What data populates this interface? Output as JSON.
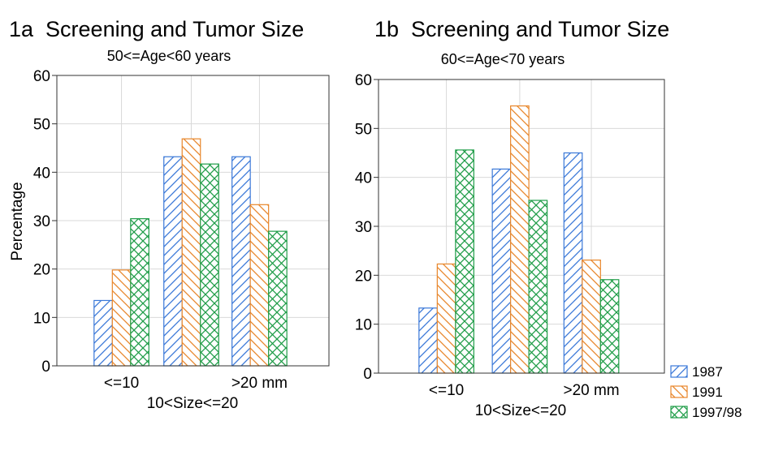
{
  "chart_data": [
    {
      "type": "bar",
      "title": "1a  Screening and Tumor Size",
      "subtitle": "50<=Age<60 years",
      "ylabel": "Percentage",
      "xlabel": "10<Size<=20",
      "categories": [
        "<=10",
        "",
        ">20 mm"
      ],
      "ylim": [
        0,
        60
      ],
      "yticks": [
        0,
        10,
        20,
        30,
        40,
        50,
        60
      ],
      "grid": true,
      "series": [
        {
          "name": "1987",
          "values": [
            13.5,
            43.2,
            43.2
          ]
        },
        {
          "name": "1991",
          "values": [
            19.8,
            46.9,
            33.3
          ]
        },
        {
          "name": "1997/98",
          "values": [
            30.4,
            41.7,
            27.8
          ]
        }
      ]
    },
    {
      "type": "bar",
      "title": "1b  Screening and Tumor Size",
      "subtitle": "60<=Age<70 years",
      "ylabel": "",
      "xlabel": "10<Size<=20",
      "categories": [
        "<=10",
        "",
        ">20 mm"
      ],
      "ylim": [
        0,
        60
      ],
      "yticks": [
        0,
        10,
        20,
        30,
        40,
        50,
        60
      ],
      "grid": true,
      "series": [
        {
          "name": "1987",
          "values": [
            13.3,
            41.7,
            45.0
          ]
        },
        {
          "name": "1991",
          "values": [
            22.3,
            54.6,
            23.1
          ]
        },
        {
          "name": "1997/98",
          "values": [
            45.6,
            35.3,
            19.1
          ]
        }
      ]
    }
  ],
  "legend": {
    "placement": "bottom-right",
    "items": [
      {
        "label": "1987",
        "color": "#3a78d8",
        "pattern": "hatch-forward"
      },
      {
        "label": "1991",
        "color": "#e8862a",
        "pattern": "hatch-back"
      },
      {
        "label": "1997/98",
        "color": "#1f9d48",
        "pattern": "crosshatch"
      }
    ]
  },
  "colors": {
    "series_1987": "#3a78d8",
    "series_1991": "#e8862a",
    "series_1997_98": "#1f9d48",
    "gridline": "#d9d9d9",
    "axis": "#333333"
  }
}
